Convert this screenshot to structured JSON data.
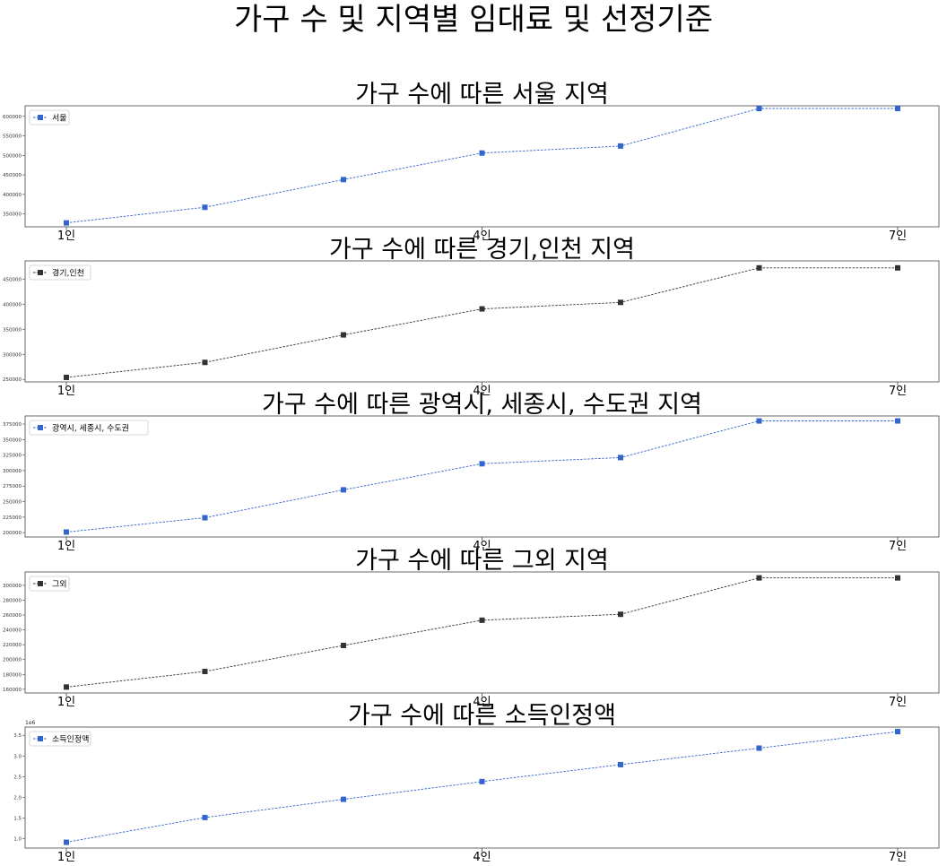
{
  "suptitle": "가구 수 및 지역별 임대료 및 선정기준",
  "chart_data": [
    {
      "type": "line",
      "title": "가구 수에 따른 서울 지역",
      "x": [
        1,
        2,
        3,
        4,
        5,
        6,
        7
      ],
      "x_tick_positions": [
        1,
        4,
        7
      ],
      "x_tick_labels": [
        "1인",
        "4인",
        "7인"
      ],
      "ylim": [
        317000,
        627000
      ],
      "y_ticks": [
        350000,
        400000,
        450000,
        500000,
        550000,
        600000
      ],
      "y_tick_labels": [
        "350000",
        "400000",
        "450000",
        "500000",
        "550000",
        "600000"
      ],
      "y_offset_label": "",
      "series": [
        {
          "name": "서울",
          "values": [
            327000,
            367000,
            438000,
            506000,
            524000,
            620000,
            620000
          ]
        }
      ],
      "color": "#3366cc",
      "marker": "square",
      "linestyle": "dashed",
      "legend": "upper-left",
      "grid": false
    },
    {
      "type": "line",
      "title": "가구 수에 따른 경기,인천 지역",
      "x": [
        1,
        2,
        3,
        4,
        5,
        6,
        7
      ],
      "x_tick_positions": [
        1,
        4,
        7
      ],
      "x_tick_labels": [
        "1인",
        "4인",
        "7인"
      ],
      "ylim": [
        245000,
        487000
      ],
      "y_ticks": [
        250000,
        300000,
        350000,
        400000,
        450000
      ],
      "y_tick_labels": [
        "250000",
        "300000",
        "350000",
        "400000",
        "450000"
      ],
      "y_offset_label": "",
      "series": [
        {
          "name": "경기,인천",
          "values": [
            254000,
            284000,
            339000,
            391000,
            404000,
            473000,
            473000
          ]
        }
      ],
      "color": "#333333",
      "marker": "square",
      "linestyle": "dashed",
      "legend": "upper-left",
      "grid": false
    },
    {
      "type": "line",
      "title": "가구 수에 따른 광역시, 세종시, 수도권 지역",
      "x": [
        1,
        2,
        3,
        4,
        5,
        6,
        7
      ],
      "x_tick_positions": [
        1,
        4,
        7
      ],
      "x_tick_labels": [
        "1인",
        "4인",
        "7인"
      ],
      "ylim": [
        193000,
        388000
      ],
      "y_ticks": [
        200000,
        225000,
        250000,
        275000,
        300000,
        325000,
        350000,
        375000
      ],
      "y_tick_labels": [
        "200000",
        "225000",
        "250000",
        "275000",
        "300000",
        "325000",
        "350000",
        "375000"
      ],
      "y_offset_label": "",
      "series": [
        {
          "name": "광역시, 세종시, 수도권",
          "values": [
            201000,
            224000,
            269000,
            311000,
            321000,
            380000,
            380000
          ]
        }
      ],
      "color": "#3366cc",
      "marker": "square",
      "linestyle": "dashed",
      "legend": "upper-left",
      "grid": false
    },
    {
      "type": "line",
      "title": "가구 수에 따른 그외 지역",
      "x": [
        1,
        2,
        3,
        4,
        5,
        6,
        7
      ],
      "x_tick_positions": [
        1,
        4,
        7
      ],
      "x_tick_labels": [
        "1인",
        "4인",
        "7인"
      ],
      "ylim": [
        155000,
        318000
      ],
      "y_ticks": [
        160000,
        180000,
        200000,
        220000,
        240000,
        260000,
        280000,
        300000
      ],
      "y_tick_labels": [
        "160000",
        "180000",
        "200000",
        "220000",
        "240000",
        "260000",
        "280000",
        "300000"
      ],
      "y_offset_label": "",
      "series": [
        {
          "name": "그외",
          "values": [
            163000,
            184000,
            219000,
            253000,
            261000,
            310000,
            310000
          ]
        }
      ],
      "color": "#333333",
      "marker": "square",
      "linestyle": "dashed",
      "legend": "upper-left",
      "grid": false
    },
    {
      "type": "line",
      "title": "가구 수에 따른 소득인정액",
      "x": [
        1,
        2,
        3,
        4,
        5,
        6,
        7
      ],
      "x_tick_positions": [
        1,
        4,
        7
      ],
      "x_tick_labels": [
        "1인",
        "4인",
        "7인"
      ],
      "ylim": [
        0.77,
        3.7
      ],
      "y_ticks": [
        1.0,
        1.5,
        2.0,
        2.5,
        3.0,
        3.5
      ],
      "y_tick_labels": [
        "1.0",
        "1.5",
        "2.0",
        "2.5",
        "3.0",
        "3.5"
      ],
      "y_offset_label": "1e6",
      "series": [
        {
          "name": "소득인정액",
          "values": [
            0.91,
            1.51,
            1.95,
            2.38,
            2.79,
            3.19,
            3.59
          ]
        }
      ],
      "color": "#3366cc",
      "marker": "square",
      "linestyle": "dashed",
      "legend": "upper-left",
      "grid": false
    }
  ]
}
